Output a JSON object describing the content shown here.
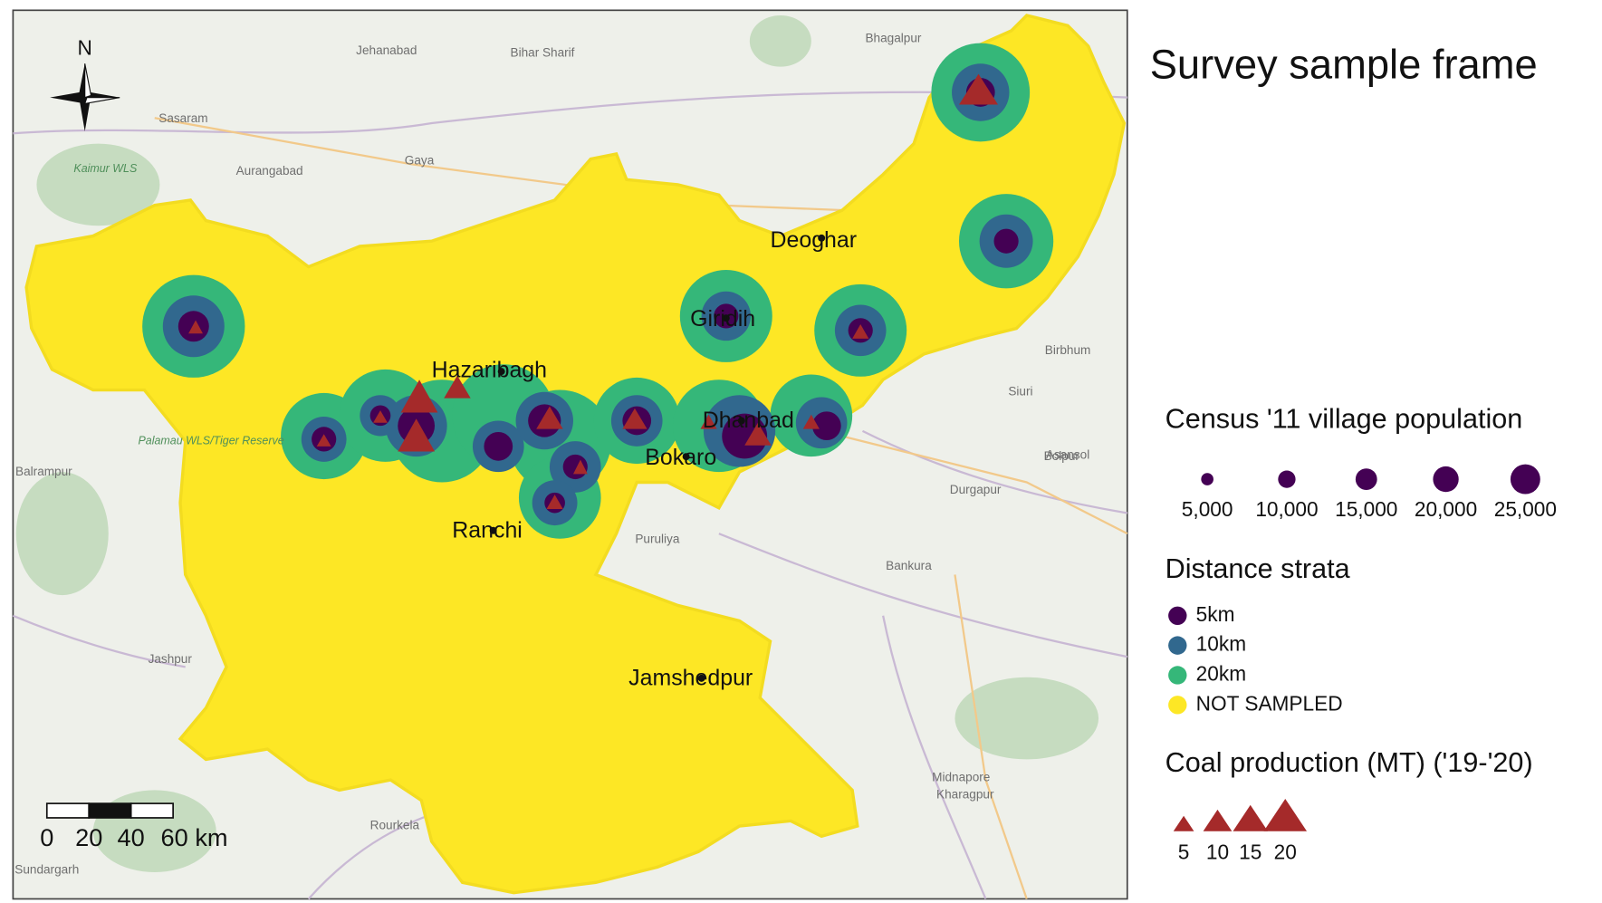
{
  "title": "Survey sample frame",
  "north": "N",
  "scale_bar": [
    "0",
    "20",
    "40",
    "60 km"
  ],
  "cities": [
    "Deoghar",
    "Giridih",
    "Hazaribagh",
    "Dhanbad",
    "Bokaro",
    "Ranchi",
    "Jamshedpur"
  ],
  "basemap_labels": [
    "Bhagalpur",
    "Jehanabad",
    "Bihar Sharif",
    "Sasaram",
    "Gaya",
    "Aurangabad",
    "Kaimur WLS",
    "Birbhum",
    "Siuri",
    "Asansol",
    "Bolpur",
    "Durgapur",
    "Bankura",
    "Puruliya",
    "Balrampur",
    "Jashpur",
    "Rourkela",
    "Sundargarh",
    "Midnapore",
    "Kharagpur",
    "Palamau WLS/Tiger Reserve"
  ],
  "legend": {
    "population": {
      "title": "Census '11 village population",
      "items": [
        "5,000",
        "10,000",
        "15,000",
        "20,000",
        "25,000"
      ]
    },
    "strata": {
      "title": "Distance strata",
      "items": [
        {
          "name": "5km",
          "color": "#440154"
        },
        {
          "name": "10km",
          "color": "#31688e"
        },
        {
          "name": "20km",
          "color": "#35b779"
        },
        {
          "name": "NOT SAMPLED",
          "color": "#fde725"
        }
      ]
    },
    "coal": {
      "title": "Coal production (MT) ('19-'20)",
      "items": [
        "5",
        "10",
        "15",
        "20"
      ],
      "color": "#a52a2a"
    }
  }
}
